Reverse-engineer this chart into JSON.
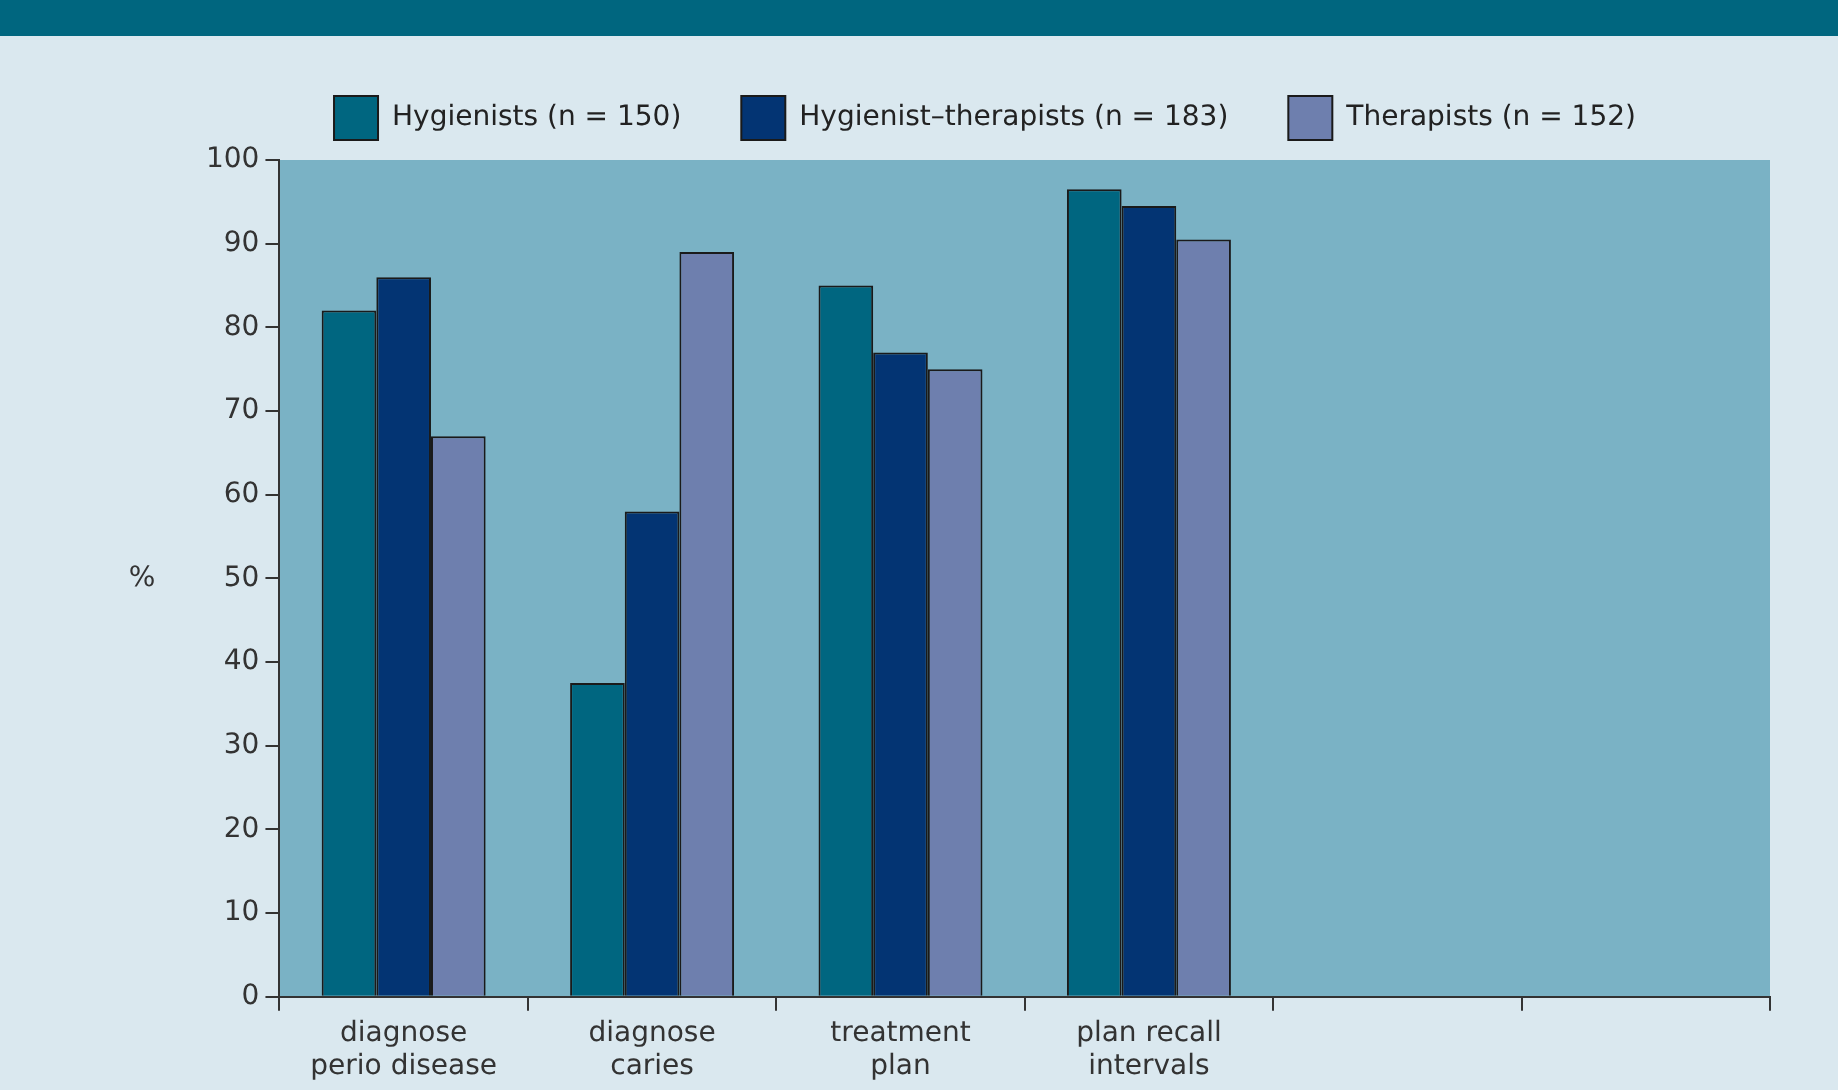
{
  "chart_data": {
    "type": "bar",
    "ylabel": "%",
    "categories": [
      "diagnose\nperio disease",
      "diagnose\ncaries",
      "treatment\nplan",
      "plan recall\nintervals",
      null,
      null
    ],
    "series": [
      {
        "name": "Hygienists (n = 150)",
        "color": "#006680",
        "values": [
          82,
          37.5,
          85,
          96.5,
          null,
          null
        ]
      },
      {
        "name": "Hygienist–therapists (n = 183)",
        "color": "#033473",
        "values": [
          86,
          58,
          77,
          94.5,
          null,
          null
        ]
      },
      {
        "name": "Therapists (n = 152)",
        "color": "#6e7fae",
        "values": [
          67,
          89,
          75,
          90.5,
          null,
          null
        ]
      }
    ],
    "ylim": [
      0,
      100
    ],
    "yticks": [
      0,
      10,
      20,
      30,
      40,
      50,
      60,
      70,
      80,
      90,
      100
    ],
    "grid": false,
    "legend": "top"
  }
}
